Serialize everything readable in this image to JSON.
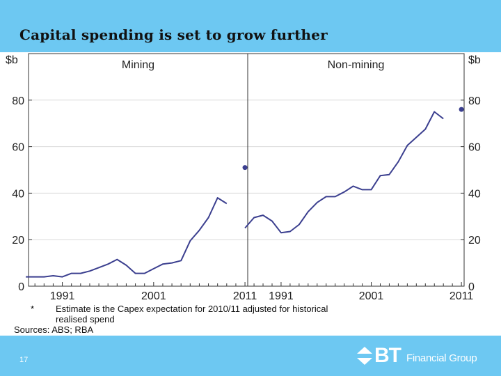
{
  "title": "Capital spending is set to grow further",
  "slide_number": "17",
  "logo": {
    "mark": "BT",
    "text": "Financial Group",
    "icon": "bt-chevron-icon"
  },
  "footnote": {
    "marker": "*",
    "line1": "Estimate is the Capex expectation for 2010/11 adjusted for historical",
    "line2": "realised spend",
    "sources": "Sources: ABS; RBA"
  },
  "colors": {
    "band": "#6dc8f2",
    "line": "#3b3f8f",
    "grid": "#d9d9d9"
  },
  "chart_data": {
    "type": "line",
    "unit_left": "$b",
    "unit_right": "$b",
    "ylim": [
      0,
      100
    ],
    "yticks": [
      0,
      20,
      40,
      60,
      80
    ],
    "grid": true,
    "panels": [
      {
        "title": "Mining",
        "xticks": [
          1991,
          2001,
          2011
        ],
        "xlim": [
          1987.3,
          2011.3
        ],
        "x": [
          1987,
          1988,
          1989,
          1990,
          1991,
          1992,
          1993,
          1994,
          1995,
          1996,
          1997,
          1998,
          1999,
          2000,
          2001,
          2002,
          2003,
          2004,
          2005,
          2006,
          2007,
          2008,
          2009,
          2010
        ],
        "y": [
          4,
          4,
          4,
          4.5,
          4,
          5.5,
          5.5,
          6.5,
          8,
          9.5,
          11.5,
          9,
          5.5,
          5.5,
          7.5,
          9.5,
          10,
          11,
          19.5,
          24,
          29.5,
          38,
          35.5,
          null
        ],
        "estimate": {
          "x": 2011,
          "y": 51
        }
      },
      {
        "title": "Non-mining",
        "xticks": [
          1991,
          2001,
          2011
        ],
        "xlim": [
          1987.3,
          2011.3
        ],
        "x": [
          1987,
          1988,
          1989,
          1990,
          1991,
          1992,
          1993,
          1994,
          1995,
          1996,
          1997,
          1998,
          1999,
          2000,
          2001,
          2002,
          2003,
          2004,
          2005,
          2006,
          2007,
          2008,
          2009,
          2010
        ],
        "y": [
          25,
          29.5,
          30.5,
          28,
          23,
          23.5,
          26.5,
          32,
          36,
          38.5,
          38.5,
          40.5,
          43,
          41.5,
          41.5,
          47.5,
          48,
          53.5,
          60.5,
          64,
          67.5,
          75,
          72,
          null
        ],
        "estimate": {
          "x": 2011,
          "y": 76
        }
      }
    ]
  }
}
